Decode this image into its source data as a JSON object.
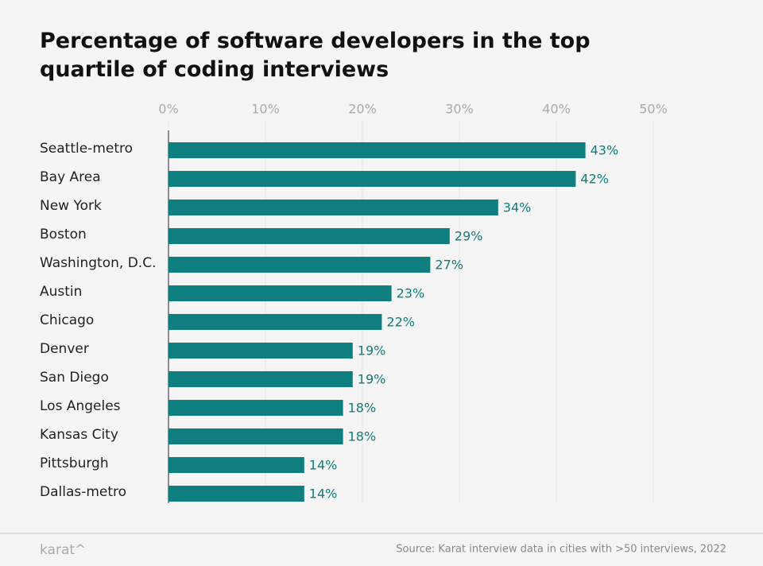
{
  "chart_data": {
    "type": "hbar",
    "title": "Percentage of software developers in the top quartile of coding interviews",
    "categories": [
      "Seattle-metro",
      "Bay Area",
      "New York",
      "Boston",
      "Washington, D.C.",
      "Austin",
      "Chicago",
      "Denver",
      "San Diego",
      "Los Angeles",
      "Kansas City",
      "Pittsburgh",
      "Dallas-metro"
    ],
    "values": [
      43,
      42,
      34,
      29,
      27,
      23,
      22,
      19,
      19,
      18,
      18,
      14,
      14
    ],
    "value_labels": [
      "43%",
      "42%",
      "34%",
      "29%",
      "27%",
      "23%",
      "22%",
      "19%",
      "19%",
      "18%",
      "18%",
      "14%",
      "14%"
    ],
    "color": "#0e7f7e",
    "xlim": [
      0,
      50
    ],
    "xticks": [
      {
        "value": 0,
        "label": "0%"
      },
      {
        "value": 10,
        "label": "10%"
      },
      {
        "value": 20,
        "label": "20%"
      },
      {
        "value": 30,
        "label": "30%"
      },
      {
        "value": 40,
        "label": "40%"
      },
      {
        "value": 50,
        "label": "50%"
      }
    ],
    "grid": true,
    "brand": "karat^",
    "source": "Source: Karat interview data in cities with >50 interviews, 2022"
  }
}
